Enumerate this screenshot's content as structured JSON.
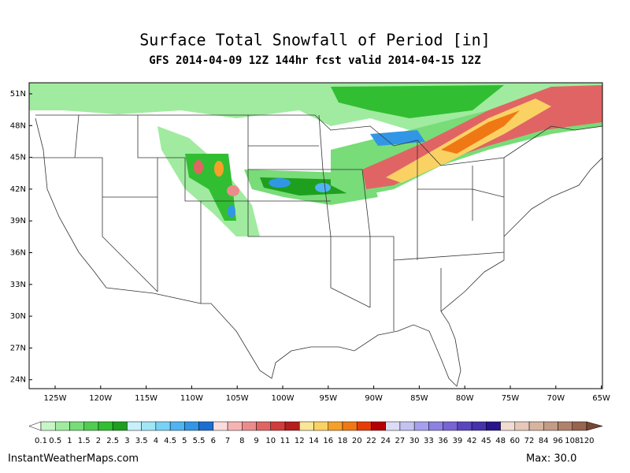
{
  "header": {
    "title": "Surface Total Snowfall of Period [in]",
    "subtitle": "GFS 2014-04-09 12Z 144hr fcst valid 2014-04-15 12Z"
  },
  "map": {
    "lat_labels": [
      "51N",
      "48N",
      "45N",
      "42N",
      "39N",
      "36N",
      "33N",
      "30N",
      "27N",
      "24N"
    ],
    "lon_labels": [
      "125W",
      "120W",
      "115W",
      "110W",
      "105W",
      "100W",
      "95W",
      "90W",
      "85W",
      "80W",
      "75W",
      "70W",
      "65W"
    ]
  },
  "colorbar": {
    "labels": [
      "0.1",
      "0.5",
      "1",
      "1.5",
      "2",
      "2.5",
      "3",
      "3.5",
      "4",
      "4.5",
      "5",
      "5.5",
      "6",
      "7",
      "8",
      "9",
      "10",
      "11",
      "12",
      "14",
      "16",
      "18",
      "20",
      "22",
      "24",
      "27",
      "30",
      "33",
      "36",
      "39",
      "42",
      "45",
      "48",
      "60",
      "72",
      "84",
      "96",
      "108",
      "120"
    ],
    "colors": [
      "#ffffff",
      "#c8f5c8",
      "#a0eba0",
      "#78dc78",
      "#50cd50",
      "#32be32",
      "#1ea01e",
      "#c8f0fa",
      "#a0e6f5",
      "#78d2f5",
      "#50b4f0",
      "#3296e6",
      "#1e6ed2",
      "#fadcdc",
      "#f5b4b4",
      "#eb8c8c",
      "#e16464",
      "#d23c3c",
      "#b41e1e",
      "#fae696",
      "#fad264",
      "#f5a028",
      "#f07814",
      "#e63c0a",
      "#b40000",
      "#dcdcf5",
      "#c3c3f0",
      "#a5a0eb",
      "#8c82e1",
      "#7864d2",
      "#5a46be",
      "#4632aa",
      "#28148c",
      "#f0dcd2",
      "#e6c8b9",
      "#d7b4a0",
      "#c39b87",
      "#af826e",
      "#966450",
      "#784632"
    ]
  },
  "footer": {
    "source": "InstantWeatherMaps.com",
    "max": "Max:  30.0"
  }
}
